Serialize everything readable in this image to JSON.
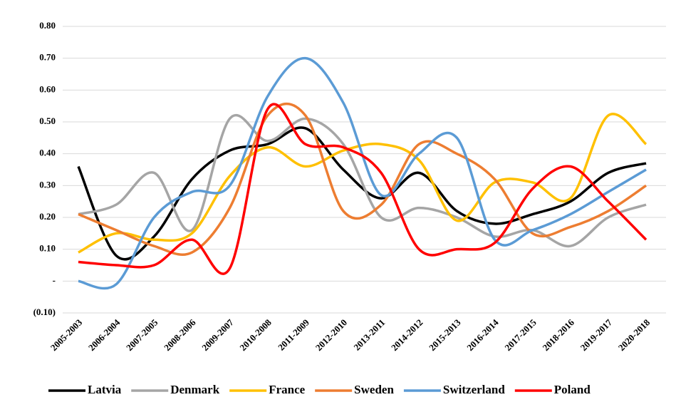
{
  "chart_data": {
    "type": "line",
    "categories": [
      "2005-2003",
      "2006-2004",
      "2007-2005",
      "2008-2006",
      "2009-2007",
      "2010-2008",
      "2011-2009",
      "2012-2010",
      "2013-2011",
      "2014-2012",
      "2015-2013",
      "2016-2014",
      "2017-2015",
      "2018-2016",
      "2019-2017",
      "2020-2018"
    ],
    "series": [
      {
        "name": "Latvia",
        "color": "#000000",
        "values": [
          0.36,
          0.08,
          0.14,
          0.32,
          0.41,
          0.43,
          0.48,
          0.35,
          0.26,
          0.34,
          0.22,
          0.18,
          0.21,
          0.25,
          0.34,
          0.37
        ]
      },
      {
        "name": "Denmark",
        "color": "#a5a5a5",
        "values": [
          0.21,
          0.24,
          0.34,
          0.16,
          0.51,
          0.44,
          0.51,
          0.43,
          0.2,
          0.23,
          0.2,
          0.14,
          0.16,
          0.11,
          0.2,
          0.24
        ]
      },
      {
        "name": "France",
        "color": "#ffc000",
        "values": [
          0.09,
          0.15,
          0.13,
          0.15,
          0.33,
          0.42,
          0.36,
          0.41,
          0.43,
          0.38,
          0.19,
          0.31,
          0.31,
          0.26,
          0.52,
          0.43
        ]
      },
      {
        "name": "Sweden",
        "color": "#ed7d31",
        "values": [
          0.21,
          0.16,
          0.11,
          0.09,
          0.23,
          0.52,
          0.52,
          0.22,
          0.24,
          0.43,
          0.4,
          0.32,
          0.15,
          0.17,
          0.22,
          0.3
        ]
      },
      {
        "name": "Switzerland",
        "color": "#5b9bd5",
        "values": [
          0.0,
          -0.01,
          0.2,
          0.28,
          0.3,
          0.58,
          0.7,
          0.56,
          0.27,
          0.4,
          0.45,
          0.13,
          0.16,
          0.21,
          0.28,
          0.35
        ]
      },
      {
        "name": "Poland",
        "color": "#ff0000",
        "values": [
          0.06,
          0.05,
          0.05,
          0.13,
          0.04,
          0.54,
          0.43,
          0.42,
          0.34,
          0.1,
          0.1,
          0.12,
          0.29,
          0.36,
          0.25,
          0.13
        ]
      }
    ],
    "ylim": [
      -0.1,
      0.8
    ],
    "yticks": [
      {
        "value": 0.8,
        "label": "0.80"
      },
      {
        "value": 0.7,
        "label": "0.70"
      },
      {
        "value": 0.6,
        "label": "0.60"
      },
      {
        "value": 0.5,
        "label": "0.50"
      },
      {
        "value": 0.4,
        "label": "0.40"
      },
      {
        "value": 0.3,
        "label": "0.30"
      },
      {
        "value": 0.2,
        "label": "0.20"
      },
      {
        "value": 0.1,
        "label": "0.10"
      },
      {
        "value": 0,
        "label": "-"
      },
      {
        "value": -0.1,
        "label": "(0.10)"
      }
    ],
    "grid": true,
    "legend": "bottom",
    "smooth": true
  }
}
